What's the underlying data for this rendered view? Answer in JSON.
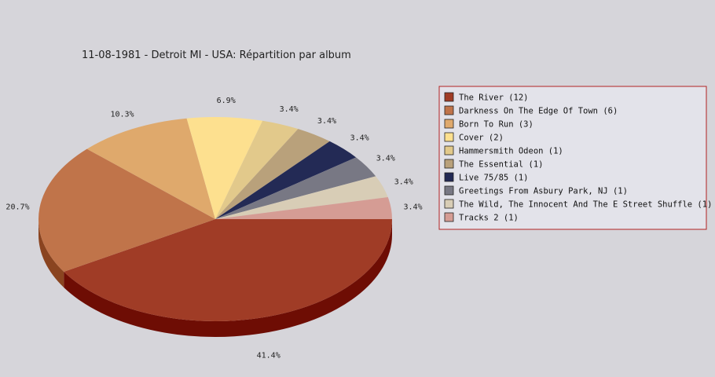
{
  "chart_data": {
    "type": "pie",
    "title": "11-08-1981 - Detroit MI - USA:  Répartition par album",
    "slices": [
      {
        "name": "The River",
        "count": 12,
        "legend_label": "The River (12)",
        "percent_label": "41.4%",
        "color": "#a03c26",
        "side_color": "#6e0d04"
      },
      {
        "name": "Darkness On The Edge Of Town",
        "count": 6,
        "legend_label": "Darkness On The Edge Of Town (6)",
        "percent_label": "20.7%",
        "color": "#c0744a",
        "side_color": "#8a4420"
      },
      {
        "name": "Born To Run",
        "count": 3,
        "legend_label": "Born To Run (3)",
        "percent_label": "10.3%",
        "color": "#dfa96c",
        "side_color": "#a9773f"
      },
      {
        "name": "Cover",
        "count": 2,
        "legend_label": "Cover (2)",
        "percent_label": "6.9%",
        "color": "#fde08f",
        "side_color": "#c8ab5e"
      },
      {
        "name": "Hammersmith Odeon",
        "count": 1,
        "legend_label": "Hammersmith Odeon  (1)",
        "percent_label": "3.4%",
        "color": "#e2c98b",
        "side_color": "#ad955a"
      },
      {
        "name": "The Essential",
        "count": 1,
        "legend_label": "The Essential (1)",
        "percent_label": "3.4%",
        "color": "#b9a17b",
        "side_color": "#86704d"
      },
      {
        "name": "Live 75/85",
        "count": 1,
        "legend_label": "Live 75/85 (1)",
        "percent_label": "3.4%",
        "color": "#232a55",
        "side_color": "#10142e"
      },
      {
        "name": "Greetings From Asbury Park, NJ",
        "count": 1,
        "legend_label": "Greetings From Asbury Park, NJ (1)",
        "percent_label": "3.4%",
        "color": "#787884",
        "side_color": "#4c4c58"
      },
      {
        "name": "The Wild, The Innocent And The E Street Shuffle",
        "count": 1,
        "legend_label": "The Wild, The Innocent And The E Street Shuffle (1)",
        "percent_label": "3.4%",
        "color": "#d8cdb6",
        "side_color": "#a89d86"
      },
      {
        "name": "Tracks 2",
        "count": 1,
        "legend_label": "Tracks 2 (1)",
        "percent_label": "3.4%",
        "color": "#d59c94",
        "side_color": "#a06a62"
      }
    ],
    "legend": {
      "placement": "right",
      "border_color": "#b22222",
      "background": "#e3e3ea"
    },
    "background": "#d6d5da"
  }
}
